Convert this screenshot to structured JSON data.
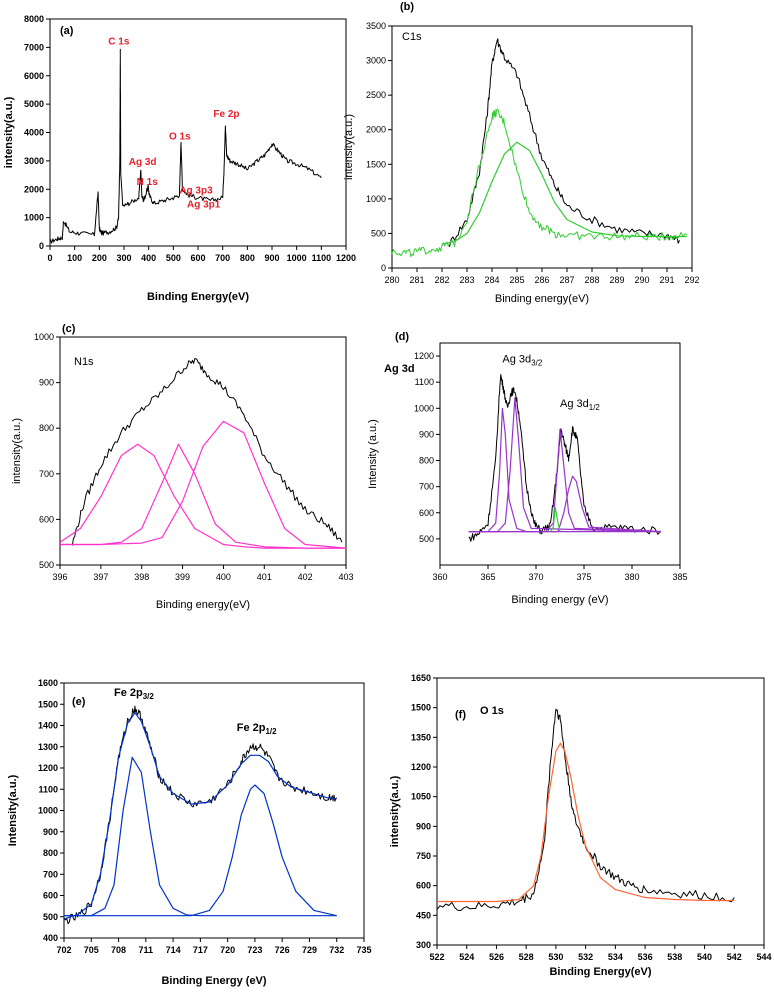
{
  "chart_data": [
    {
      "panel_label": "(a)",
      "type": "line",
      "title": "",
      "xlabel": "Binding Energy(eV)",
      "ylabel": "intensity(a.u.)",
      "xlim": [
        0,
        1200
      ],
      "ylim": [
        0,
        8000
      ],
      "xticks": [
        0,
        100,
        200,
        300,
        400,
        500,
        600,
        700,
        800,
        900,
        1000,
        1100,
        1200
      ],
      "yticks": [
        0,
        1000,
        2000,
        3000,
        4000,
        5000,
        6000,
        7000,
        8000
      ],
      "grid": false,
      "annotations": [
        {
          "text": "C 1s",
          "x": 285,
          "y": 7100,
          "color": "#e8202a"
        },
        {
          "text": "Ag 3d",
          "x": 368,
          "y": 2850,
          "color": "#e8202a"
        },
        {
          "text": "N 1s",
          "x": 400,
          "y": 2150,
          "color": "#e8202a"
        },
        {
          "text": "O 1s",
          "x": 531,
          "y": 3750,
          "color": "#e8202a"
        },
        {
          "text": "Ag 3p3",
          "x": 573,
          "y": 1850,
          "color": "#e8202a"
        },
        {
          "text": "Ag 3p1",
          "x": 604,
          "y": 1350,
          "color": "#e8202a"
        },
        {
          "text": "Fe 2p",
          "x": 711,
          "y": 4550,
          "color": "#e8202a"
        }
      ],
      "series": [
        {
          "color": "#000000",
          "x": [
            0,
            30,
            50,
            55,
            80,
            120,
            180,
            195,
            200,
            210,
            240,
            270,
            278,
            283,
            285,
            287,
            295,
            320,
            360,
            368,
            372,
            380,
            398,
            402,
            420,
            460,
            500,
            525,
            531,
            537,
            560,
            600,
            650,
            700,
            706,
            711,
            716,
            730,
            760,
            800,
            840,
            870,
            900,
            930,
            960,
            1000,
            1050,
            1100
          ],
          "values": [
            150,
            250,
            300,
            900,
            500,
            450,
            400,
            1900,
            600,
            450,
            500,
            650,
            1000,
            3000,
            7000,
            2500,
            1400,
            1500,
            1700,
            2700,
            1800,
            1600,
            2100,
            1800,
            1500,
            1600,
            1700,
            1800,
            3700,
            2000,
            1800,
            1700,
            1600,
            1700,
            2800,
            4300,
            3200,
            3000,
            2900,
            2700,
            3000,
            3200,
            3600,
            3300,
            3000,
            2900,
            2700,
            2400
          ]
        }
      ]
    },
    {
      "panel_label": "(b)",
      "type": "line",
      "title": "",
      "peak_label": "C1s",
      "xlabel": "Binding energy(eV)",
      "ylabel": "intensity(a.u.)",
      "xlim": [
        280,
        292
      ],
      "ylim": [
        0,
        3500
      ],
      "xticks": [
        280,
        281,
        282,
        283,
        284,
        285,
        286,
        287,
        288,
        289,
        290,
        291,
        292
      ],
      "yticks": [
        0,
        500,
        1000,
        1500,
        2000,
        2500,
        3000,
        3500
      ],
      "grid": false,
      "series": [
        {
          "color": "#000000",
          "x": [
            282.3,
            283,
            283.5,
            283.8,
            284,
            284.2,
            284.5,
            285,
            285.5,
            286,
            286.5,
            287,
            288,
            289,
            290,
            291,
            291.5
          ],
          "values": [
            350,
            700,
            1400,
            2200,
            2950,
            3300,
            3050,
            2800,
            2200,
            1600,
            1200,
            900,
            700,
            560,
            500,
            480,
            400
          ]
        },
        {
          "color": "#33cc33",
          "x": [
            280,
            280.5,
            281,
            281.5,
            282,
            282.5,
            283,
            283.5,
            284,
            284.2,
            284.5,
            285,
            285.5,
            286,
            286.5,
            287,
            288,
            289,
            290,
            291,
            291.8
          ],
          "values": [
            250,
            220,
            230,
            260,
            300,
            360,
            700,
            1500,
            2200,
            2250,
            2100,
            1400,
            800,
            600,
            500,
            470,
            460,
            455,
            455,
            455,
            480
          ]
        },
        {
          "color": "#33cc33",
          "x": [
            282,
            282.5,
            283,
            283.5,
            284,
            284.5,
            285,
            285.5,
            286,
            286.5,
            287,
            288,
            289,
            290,
            291.8
          ],
          "values": [
            350,
            380,
            500,
            800,
            1250,
            1650,
            1820,
            1700,
            1350,
            950,
            700,
            520,
            465,
            455,
            455
          ]
        }
      ]
    },
    {
      "panel_label": "(c)",
      "type": "line",
      "title": "",
      "peak_label": "N1s",
      "xlabel": "Binding energy(eV)",
      "ylabel": "intensity(a.u.)",
      "xlim": [
        396,
        403
      ],
      "ylim": [
        500,
        1000
      ],
      "xticks": [
        396,
        397,
        398,
        399,
        400,
        401,
        402,
        403
      ],
      "yticks": [
        500,
        600,
        700,
        800,
        900,
        1000
      ],
      "grid": false,
      "series": [
        {
          "color": "#000000",
          "x": [
            396.3,
            396.6,
            397,
            397.5,
            398,
            398.5,
            399,
            399.3,
            399.6,
            400,
            400.5,
            401,
            401.5,
            402,
            402.5,
            402.9
          ],
          "values": [
            545,
            640,
            720,
            790,
            840,
            880,
            930,
            950,
            920,
            890,
            830,
            740,
            680,
            620,
            590,
            550
          ]
        },
        {
          "color": "#ff33cc",
          "x": [
            396,
            396.5,
            397,
            397.5,
            397.9,
            398.3,
            398.8,
            399.3,
            400,
            400.5,
            401,
            402,
            403
          ],
          "values": [
            550,
            580,
            650,
            740,
            765,
            740,
            650,
            580,
            545,
            540,
            537,
            537,
            537
          ]
        },
        {
          "color": "#ff33cc",
          "x": [
            396,
            397,
            397.5,
            398,
            398.5,
            398.9,
            399.3,
            399.8,
            400.3,
            401,
            402,
            403
          ],
          "values": [
            545,
            545,
            550,
            580,
            680,
            765,
            700,
            590,
            550,
            540,
            537,
            537
          ]
        },
        {
          "color": "#ff33cc",
          "x": [
            396,
            397,
            398,
            398.5,
            399,
            399.5,
            400,
            400.5,
            401,
            401.5,
            402,
            403
          ],
          "values": [
            545,
            545,
            548,
            560,
            640,
            760,
            815,
            790,
            680,
            580,
            545,
            537
          ]
        }
      ]
    },
    {
      "panel_label": "(d)",
      "type": "line",
      "title": "",
      "peak_label": "Ag 3d",
      "xlabel": "Binding energy (eV)",
      "ylabel": "Intensity (a.u.)",
      "xlim": [
        360,
        385
      ],
      "ylim": [
        400,
        1250
      ],
      "xticks": [
        360,
        365,
        370,
        375,
        380,
        385
      ],
      "yticks": [
        500,
        600,
        700,
        800,
        900,
        1000,
        1100,
        1200
      ],
      "grid": false,
      "annotations": [
        {
          "text": "Ag 3d",
          "sub": "3/2",
          "x": 366.5,
          "y": 1175
        },
        {
          "text": "Ag 3d",
          "sub": "1/2",
          "x": 372.5,
          "y": 1005
        }
      ],
      "series": [
        {
          "color": "#000000",
          "x": [
            363,
            364,
            365,
            365.8,
            366.3,
            366.6,
            367,
            367.4,
            367.8,
            368.3,
            369,
            369.8,
            370.5,
            371.5,
            372.2,
            372.6,
            373,
            373.4,
            373.8,
            374.3,
            375,
            376,
            378,
            380,
            383
          ],
          "values": [
            500,
            520,
            560,
            800,
            1130,
            1080,
            1000,
            1060,
            1070,
            960,
            700,
            560,
            530,
            550,
            760,
            920,
            860,
            810,
            920,
            880,
            620,
            540,
            545,
            540,
            530
          ]
        },
        {
          "color": "#9933cc",
          "x": [
            363,
            365,
            365.8,
            366.2,
            366.5,
            366.8,
            367.2,
            368,
            369,
            383
          ],
          "values": [
            528,
            528,
            560,
            750,
            1000,
            900,
            650,
            540,
            528,
            528
          ]
        },
        {
          "color": "#9933cc",
          "x": [
            363,
            366,
            366.8,
            367.3,
            367.8,
            368.2,
            368.7,
            369.5,
            383
          ],
          "values": [
            528,
            528,
            560,
            760,
            1040,
            870,
            620,
            540,
            528
          ]
        },
        {
          "color": "#9933cc",
          "x": [
            363,
            371,
            371.8,
            372.2,
            372.5,
            372.9,
            373.4,
            374,
            383
          ],
          "values": [
            528,
            528,
            560,
            760,
            920,
            780,
            600,
            540,
            528
          ]
        },
        {
          "color": "#9933cc",
          "x": [
            363,
            372.3,
            372.9,
            373.4,
            373.8,
            374.2,
            374.8,
            375.5,
            383
          ],
          "values": [
            528,
            528,
            600,
            690,
            740,
            720,
            620,
            545,
            528
          ]
        },
        {
          "color": "#33cc33",
          "x": [
            371.5,
            371.8,
            372,
            372.3,
            372.5
          ],
          "values": [
            528,
            545,
            620,
            560,
            528
          ]
        }
      ]
    },
    {
      "panel_label": "(e)",
      "type": "line",
      "title": "",
      "xlabel": "Binding  Energy (eV)",
      "ylabel": "Intensity(a.u.)",
      "xlim": [
        702,
        735
      ],
      "ylim": [
        400,
        1600
      ],
      "xticks": [
        702,
        705,
        708,
        711,
        714,
        717,
        720,
        723,
        726,
        729,
        732,
        735
      ],
      "yticks": [
        400,
        500,
        600,
        700,
        800,
        900,
        1000,
        1100,
        1200,
        1300,
        1400,
        1500,
        1600
      ],
      "grid": false,
      "annotations": [
        {
          "text": "Fe 2p",
          "sub": "3/2",
          "x": 707.5,
          "y": 1540
        },
        {
          "text": "Fe 2p",
          "sub": "1/2",
          "x": 721,
          "y": 1375
        }
      ],
      "series": [
        {
          "color": "#000000",
          "x": [
            702,
            703.5,
            705,
            706,
            707,
            708,
            709,
            709.8,
            710.5,
            711.5,
            712.5,
            714,
            716,
            718,
            720,
            721.5,
            722.5,
            723.5,
            724.5,
            725.5,
            727,
            729,
            731,
            732
          ],
          "values": [
            480,
            500,
            560,
            700,
            950,
            1250,
            1420,
            1480,
            1440,
            1300,
            1160,
            1080,
            1030,
            1040,
            1120,
            1230,
            1300,
            1300,
            1250,
            1160,
            1110,
            1090,
            1060,
            1060
          ]
        },
        {
          "color": "#0033cc",
          "x": [
            702,
            703.5,
            705,
            706,
            707,
            708,
            709,
            709.8,
            710.5,
            711.5,
            712.5,
            714,
            716,
            718,
            720,
            721.5,
            722.5,
            723.5,
            724.5,
            725.5,
            727,
            729,
            731,
            732
          ],
          "values": [
            490,
            510,
            560,
            700,
            950,
            1250,
            1410,
            1460,
            1420,
            1300,
            1160,
            1080,
            1030,
            1040,
            1120,
            1220,
            1260,
            1260,
            1230,
            1160,
            1110,
            1085,
            1060,
            1055
          ]
        },
        {
          "color": "#0033cc",
          "x": [
            702,
            705,
            706.5,
            707.5,
            708.5,
            709.5,
            710.5,
            711.5,
            712.5,
            714,
            715.5,
            717,
            732
          ],
          "values": [
            505,
            505,
            540,
            650,
            1000,
            1250,
            1180,
            900,
            650,
            540,
            508,
            505,
            505
          ]
        },
        {
          "color": "#0033cc",
          "x": [
            702,
            716,
            718,
            719.5,
            720.5,
            721.5,
            722.5,
            723,
            724,
            725,
            726,
            727.5,
            729.5,
            732
          ],
          "values": [
            505,
            505,
            530,
            620,
            780,
            980,
            1100,
            1120,
            1080,
            940,
            780,
            620,
            530,
            505
          ]
        }
      ]
    },
    {
      "panel_label": "(f)",
      "type": "line",
      "title": "",
      "peak_label": "O 1s",
      "xlabel": "Binding Energy(eV)",
      "ylabel": "intensity(a.u.)",
      "xlim": [
        522,
        544
      ],
      "ylim": [
        300,
        1650
      ],
      "xticks": [
        522,
        524,
        526,
        528,
        530,
        532,
        534,
        536,
        538,
        540,
        542,
        544
      ],
      "yticks": [
        300,
        450,
        600,
        750,
        900,
        1050,
        1200,
        1350,
        1500,
        1650
      ],
      "grid": false,
      "series": [
        {
          "color": "#000000",
          "x": [
            522,
            524,
            526,
            527.5,
            528.5,
            529.2,
            529.6,
            530,
            530.3,
            530.7,
            531.2,
            532,
            533,
            534,
            535,
            536,
            538,
            540,
            542
          ],
          "values": [
            500,
            490,
            500,
            520,
            560,
            800,
            1200,
            1500,
            1440,
            1200,
            950,
            800,
            700,
            640,
            600,
            580,
            560,
            550,
            540
          ]
        },
        {
          "color": "#ff6633",
          "x": [
            522,
            526,
            527.5,
            528.5,
            529,
            529.5,
            530,
            530.3,
            530.6,
            531,
            531.5,
            532,
            533,
            534,
            536,
            538,
            540,
            542
          ],
          "values": [
            520,
            520,
            530,
            600,
            750,
            1050,
            1280,
            1320,
            1280,
            1150,
            950,
            800,
            640,
            580,
            540,
            530,
            525,
            525
          ]
        }
      ]
    }
  ]
}
